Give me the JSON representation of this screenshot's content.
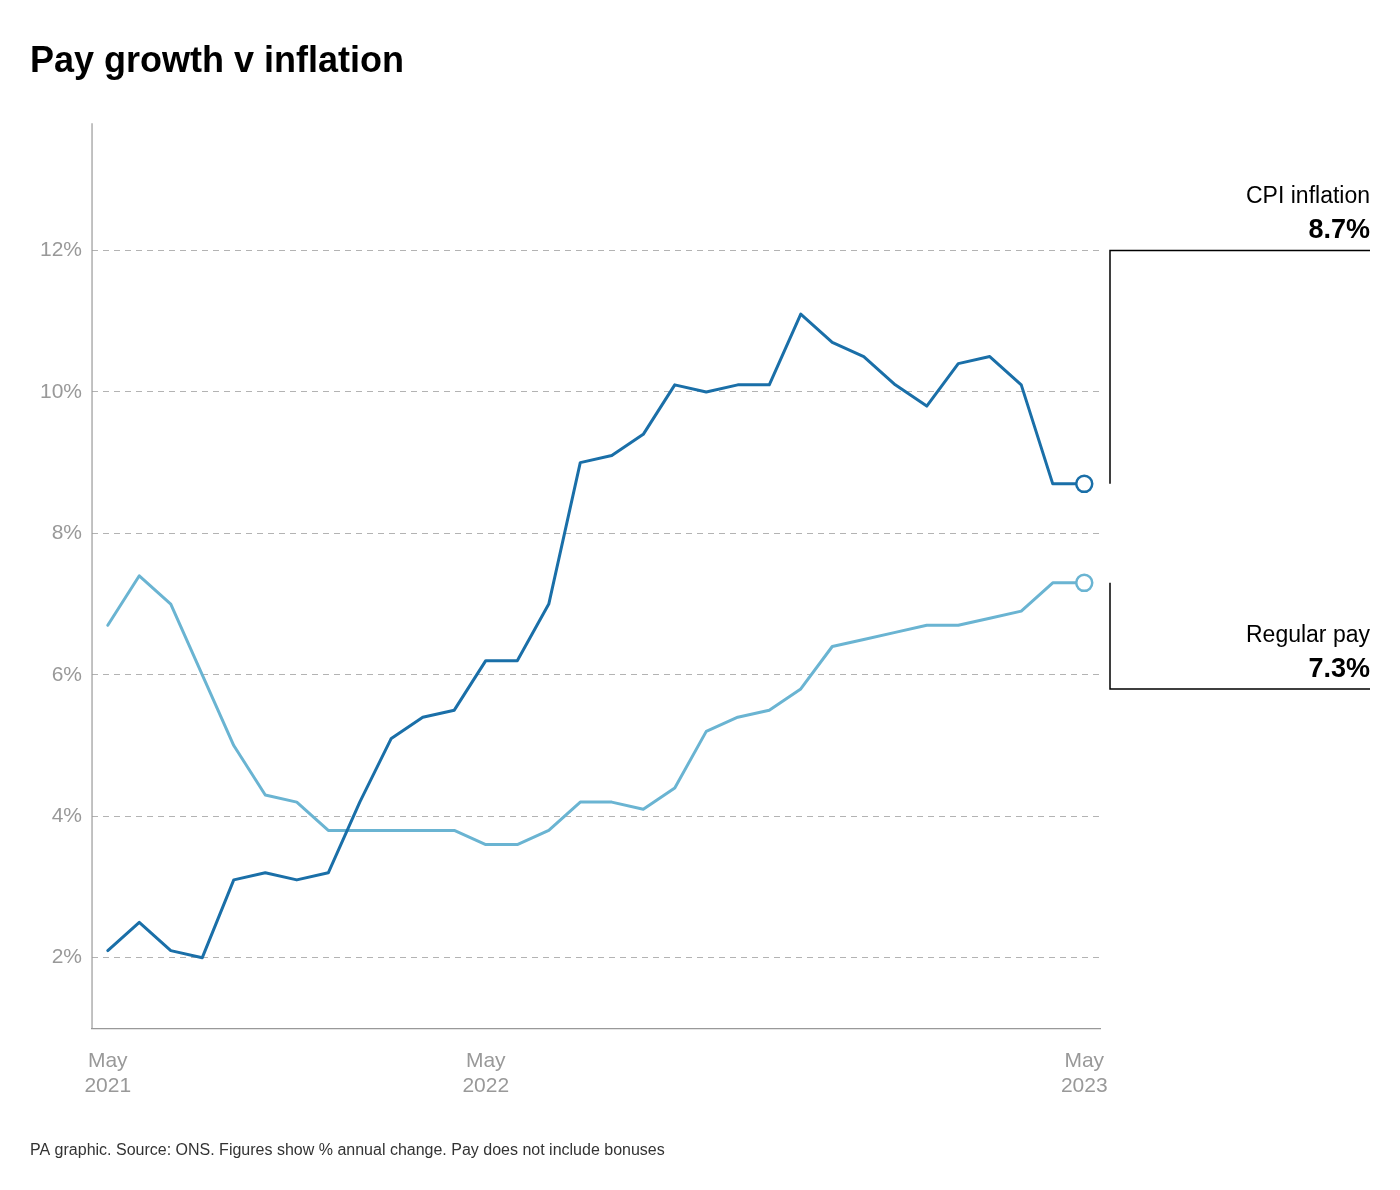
{
  "chart_data": {
    "type": "line",
    "title": "Pay growth v inflation",
    "footnote": "PA graphic. Source: ONS. Figures show % annual change. Pay does not include bonuses",
    "categories": [
      "May\n2021",
      null,
      null,
      null,
      null,
      null,
      null,
      null,
      null,
      null,
      null,
      null,
      "May\n2022",
      null,
      null,
      null,
      null,
      null,
      null,
      null,
      null,
      null,
      null,
      null,
      null,
      null,
      null,
      null,
      null,
      null,
      null,
      "May\n2023"
    ],
    "series": [
      {
        "name": "CPI inflation",
        "color": "#1a6fa8",
        "marker": "circle",
        "values": [
          2.1,
          2.5,
          2.1,
          2.0,
          3.1,
          3.2,
          3.1,
          3.2,
          4.2,
          5.1,
          5.4,
          5.5,
          6.2,
          6.2,
          7.0,
          9.0,
          9.1,
          9.4,
          10.1,
          10.0,
          10.1,
          10.1,
          11.1,
          10.7,
          10.5,
          10.1,
          9.8,
          10.4,
          10.5,
          10.1,
          8.7,
          8.7
        ]
      },
      {
        "name": "Regular pay",
        "color": "#6ab4d2",
        "marker": "circle",
        "values": [
          6.7,
          7.4,
          7.0,
          6.0,
          5.0,
          4.3,
          4.2,
          3.8,
          3.8,
          3.8,
          3.8,
          3.8,
          3.6,
          3.6,
          3.8,
          4.2,
          4.2,
          4.1,
          4.4,
          5.2,
          5.4,
          5.5,
          5.8,
          6.4,
          6.5,
          6.6,
          6.7,
          6.7,
          6.8,
          6.9,
          7.3,
          7.3
        ]
      }
    ],
    "ylim": [
      1.0,
      13.8
    ],
    "yticks": [
      {
        "value": 2,
        "label": "2%"
      },
      {
        "value": 4,
        "label": "4%"
      },
      {
        "value": 6,
        "label": "6%"
      },
      {
        "value": 8,
        "label": "8%"
      },
      {
        "value": 10,
        "label": "10%"
      },
      {
        "value": 12,
        "label": "12%"
      }
    ],
    "grid": true,
    "annotations": [
      {
        "series": "CPI inflation",
        "text": "8.7%",
        "y": 8.7,
        "label_y": 12.0
      },
      {
        "series": "Regular pay",
        "text": "7.3%",
        "y": 7.3,
        "label_y": 5.8
      }
    ]
  }
}
